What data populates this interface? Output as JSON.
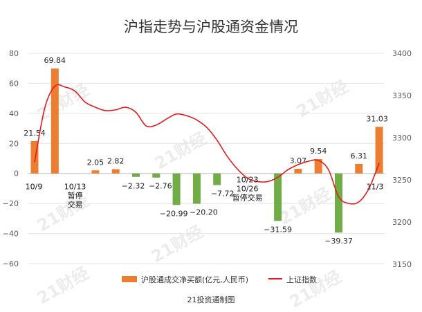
{
  "chart_data": {
    "type": "bar+line",
    "title": "沪指走势与沪股通资金情况",
    "credit": "21投资通制图",
    "watermark": "21财经",
    "legend": {
      "placement": "bottom",
      "bar_series_name": "沪股通成交净买额(亿元,人民币)",
      "line_series_name": "上证指数"
    },
    "y_left": {
      "min": -60,
      "max": 80,
      "step": 20,
      "ticks": [
        "80",
        "60",
        "40",
        "20",
        "0",
        "−20",
        "−40",
        "−60"
      ]
    },
    "y_right": {
      "min": 3150,
      "max": 3400,
      "step": 50,
      "ticks": [
        "3400",
        "3350",
        "3300",
        "3250",
        "3200",
        "3150"
      ]
    },
    "colors": {
      "positive_bar": "#ED7D31",
      "negative_bar": "#70AD47",
      "line": "#E31A1C"
    },
    "bars": [
      {
        "slot": 0,
        "value": 21.54,
        "label": "21.54"
      },
      {
        "slot": 1,
        "value": 69.84,
        "label": "69.84"
      },
      {
        "slot": 3,
        "value": 2.05,
        "label": "2.05"
      },
      {
        "slot": 4,
        "value": 2.82,
        "label": "2.82"
      },
      {
        "slot": 5,
        "value": -2.32,
        "label": "−2.32"
      },
      {
        "slot": 6,
        "value": -2.76,
        "label": "−2.76"
      },
      {
        "slot": 7,
        "value": -20.99,
        "label": "−20.99"
      },
      {
        "slot": 8,
        "value": -20.2,
        "label": "−20.20"
      },
      {
        "slot": 9,
        "value": -7.72,
        "label": "−7.72"
      },
      {
        "slot": 12,
        "value": -31.59,
        "label": "−31.59"
      },
      {
        "slot": 13,
        "value": 3.07,
        "label": "3.07"
      },
      {
        "slot": 14,
        "value": 9.54,
        "label": "9.54"
      },
      {
        "slot": 15,
        "value": -39.37,
        "label": "−39.37"
      },
      {
        "slot": 16,
        "value": 6.31,
        "label": "6.31"
      },
      {
        "slot": 17,
        "value": 31.03,
        "label": "31.03"
      }
    ],
    "line": {
      "slots": [
        0,
        0.5,
        1,
        1.5,
        2,
        2.5,
        3,
        3.5,
        4,
        4.5,
        5,
        5.5,
        6,
        6.5,
        7,
        7.5,
        8,
        8.5,
        9,
        9.5,
        10,
        10.5,
        11,
        11.5,
        12,
        12.5,
        13,
        13.5,
        14,
        14.5,
        15,
        15.5,
        16,
        16.5,
        17
      ],
      "values": [
        3271,
        3335,
        3361,
        3360,
        3355,
        3342,
        3336,
        3332,
        3333,
        3336,
        3330,
        3314,
        3315,
        3322,
        3328,
        3326,
        3321,
        3312,
        3297,
        3278,
        3263,
        3252,
        3248,
        3248,
        3253,
        3262,
        3268,
        3272,
        3273,
        3262,
        3230,
        3222,
        3224,
        3240,
        3270
      ]
    },
    "annotations": [
      {
        "slot": 0,
        "value": 0,
        "lines": [
          "10/9"
        ]
      },
      {
        "slot": 2,
        "value": 0,
        "lines": [
          "10/13",
          "暂停",
          "交易"
        ]
      },
      {
        "slot": 10.5,
        "value": 0,
        "lines": [
          "10/23",
          "10/26",
          "暂停交易"
        ]
      },
      {
        "slot": 17,
        "value": 0,
        "lines": [
          "11/3"
        ]
      }
    ]
  }
}
